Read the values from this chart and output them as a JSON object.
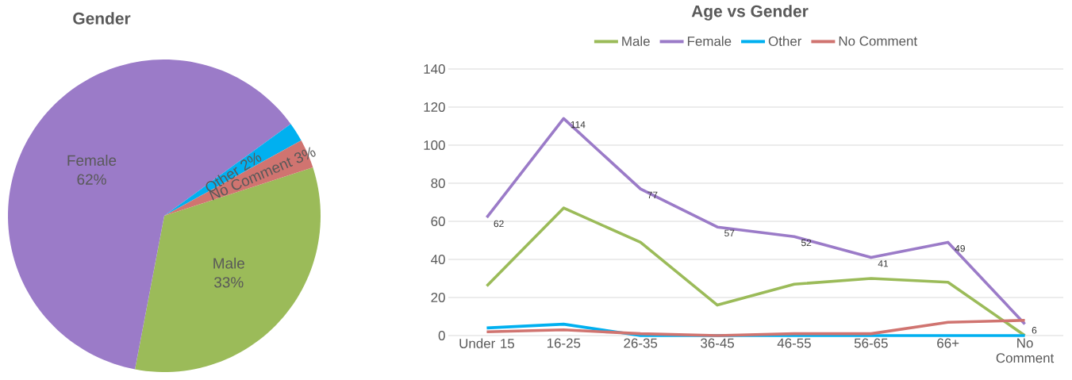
{
  "chart_data": [
    {
      "type": "pie",
      "title": "Gender",
      "categories": [
        "Male",
        "Female",
        "Other",
        "No Comment"
      ],
      "values": [
        33,
        62,
        2,
        3
      ],
      "colors": [
        "#9bbb59",
        "#9b7bc8",
        "#00b0f0",
        "#d07470"
      ],
      "value_labels": [
        "33%",
        "62%",
        "2%",
        "3%"
      ]
    },
    {
      "type": "line",
      "title": "Age vs Gender",
      "categories": [
        "Under 15",
        "16-25",
        "26-35",
        "36-45",
        "46-55",
        "56-65",
        "66+",
        "No Comment"
      ],
      "series": [
        {
          "name": "Male",
          "color": "#9bbb59",
          "values": [
            26,
            67,
            49,
            16,
            27,
            30,
            28,
            0
          ]
        },
        {
          "name": "Female",
          "color": "#9b7bc8",
          "values": [
            62,
            114,
            77,
            57,
            52,
            41,
            49,
            6
          ],
          "value_labels": [
            "62",
            "114",
            "77",
            "57",
            "52",
            "41",
            "49",
            "6"
          ]
        },
        {
          "name": "Other",
          "color": "#00b0f0",
          "values": [
            4,
            6,
            0,
            0,
            0,
            0,
            0,
            0
          ]
        },
        {
          "name": "No Comment",
          "color": "#d07470",
          "values": [
            2,
            3,
            1,
            0,
            1,
            1,
            7,
            8
          ]
        }
      ],
      "ylim": [
        0,
        140
      ],
      "yticks": [
        0,
        20,
        40,
        60,
        80,
        100,
        120,
        140
      ],
      "grid": "y",
      "legend": "top"
    }
  ]
}
